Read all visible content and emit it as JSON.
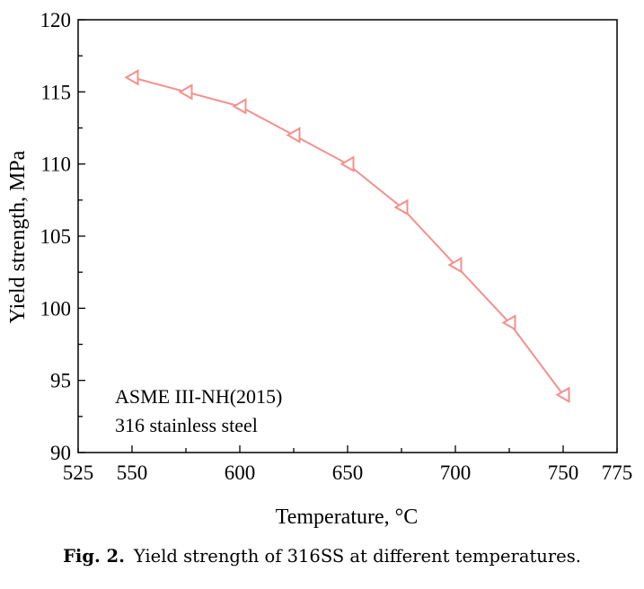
{
  "chart_data": {
    "type": "line",
    "x": [
      550,
      575,
      600,
      625,
      650,
      675,
      700,
      725,
      750
    ],
    "series": [
      {
        "values": [
          116,
          115,
          114,
          112,
          110,
          107,
          103,
          99,
          94
        ]
      }
    ],
    "xlabel": "Temperature, °C",
    "ylabel": "Yield strength, MPa",
    "xlim": [
      525,
      775
    ],
    "ylim": [
      90,
      120
    ],
    "xticks": [
      525,
      550,
      600,
      650,
      700,
      750,
      775
    ],
    "yticks": [
      90,
      95,
      100,
      105,
      110,
      115,
      120
    ],
    "annotations": [
      "ASME III-NH(2015)",
      "316 stainless steel"
    ],
    "marker": "triangle-left",
    "color": "#f4908e",
    "grid": false
  },
  "caption": {
    "label": "Fig. 2.",
    "text": "Yield strength of 316SS at different temperatures."
  }
}
